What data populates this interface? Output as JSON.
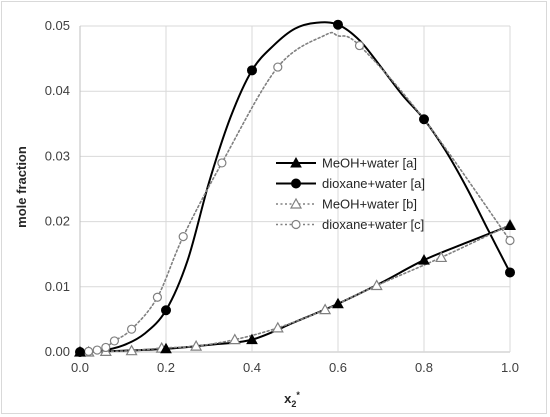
{
  "chart_data": {
    "type": "line",
    "title": "",
    "xlabel": "x",
    "xlabel_sub": "2",
    "xlabel_sup": "*",
    "ylabel": "mole fraction",
    "xlim": [
      0,
      1
    ],
    "ylim": [
      0,
      0.05
    ],
    "xticks": [
      "0.0",
      "0.2",
      "0.4",
      "0.6",
      "0.8",
      "1.0"
    ],
    "yticks": [
      "0.00",
      "0.01",
      "0.02",
      "0.03",
      "0.04",
      "0.05"
    ],
    "grid": true,
    "legend_position": "center-right",
    "series": [
      {
        "name": "MeOH+water [a]",
        "line": "solid",
        "color": "#000000",
        "marker": "filled-triangle",
        "curve": [
          [
            0,
            0
          ],
          [
            0.1,
            0.0002
          ],
          [
            0.2,
            0.0005
          ],
          [
            0.3,
            0.0011
          ],
          [
            0.4,
            0.0019
          ],
          [
            0.5,
            0.0046
          ],
          [
            0.6,
            0.0074
          ],
          [
            0.7,
            0.0106
          ],
          [
            0.8,
            0.0141
          ],
          [
            0.9,
            0.0168
          ],
          [
            1.0,
            0.0194
          ]
        ],
        "markers": [
          [
            0,
            0
          ],
          [
            0.2,
            0.0005
          ],
          [
            0.4,
            0.0019
          ],
          [
            0.6,
            0.0074
          ],
          [
            0.8,
            0.0141
          ],
          [
            1.0,
            0.0194
          ]
        ]
      },
      {
        "name": "dioxane+water [a]",
        "line": "solid",
        "color": "#000000",
        "marker": "filled-circle",
        "curve": [
          [
            0,
            0
          ],
          [
            0.05,
            0.0002
          ],
          [
            0.1,
            0.001
          ],
          [
            0.15,
            0.0028
          ],
          [
            0.2,
            0.0064
          ],
          [
            0.25,
            0.014
          ],
          [
            0.3,
            0.026
          ],
          [
            0.35,
            0.036
          ],
          [
            0.4,
            0.0432
          ],
          [
            0.45,
            0.047
          ],
          [
            0.5,
            0.0496
          ],
          [
            0.55,
            0.0505
          ],
          [
            0.6,
            0.0502
          ],
          [
            0.65,
            0.0478
          ],
          [
            0.7,
            0.0437
          ],
          [
            0.75,
            0.0394
          ],
          [
            0.8,
            0.0357
          ],
          [
            0.85,
            0.0309
          ],
          [
            0.9,
            0.0251
          ],
          [
            0.95,
            0.0186
          ],
          [
            1.0,
            0.0122
          ]
        ],
        "markers": [
          [
            0,
            0
          ],
          [
            0.2,
            0.0064
          ],
          [
            0.4,
            0.0432
          ],
          [
            0.6,
            0.0502
          ],
          [
            0.8,
            0.0357
          ],
          [
            1.0,
            0.0122
          ]
        ]
      },
      {
        "name": "MeOH+water [b]",
        "line": "dotted",
        "color": "#808080",
        "marker": "open-triangle",
        "curve": [
          [
            0,
            0
          ],
          [
            0.02,
            0
          ],
          [
            0.06,
            0.0001
          ],
          [
            0.12,
            0.0002
          ],
          [
            0.19,
            0.0006
          ],
          [
            0.27,
            0.0009
          ],
          [
            0.36,
            0.0019
          ],
          [
            0.46,
            0.0037
          ],
          [
            0.57,
            0.0065
          ],
          [
            0.69,
            0.0102
          ],
          [
            0.84,
            0.0145
          ],
          [
            1.0,
            0.0195
          ]
        ],
        "markers": [
          [
            0,
            0
          ],
          [
            0.02,
            0
          ],
          [
            0.06,
            0.0001
          ],
          [
            0.12,
            0.0002
          ],
          [
            0.19,
            0.0006
          ],
          [
            0.27,
            0.0009
          ],
          [
            0.36,
            0.0019
          ],
          [
            0.46,
            0.0037
          ],
          [
            0.57,
            0.0065
          ],
          [
            0.69,
            0.0102
          ],
          [
            0.84,
            0.0145
          ],
          [
            1.0,
            0.0195
          ]
        ]
      },
      {
        "name": "dioxane+water [c]",
        "line": "dotted",
        "color": "#808080",
        "marker": "open-circle",
        "curve": [
          [
            0,
            0
          ],
          [
            0.02,
            0.0001
          ],
          [
            0.04,
            0.0003
          ],
          [
            0.06,
            0.0007
          ],
          [
            0.08,
            0.0017
          ],
          [
            0.12,
            0.0035
          ],
          [
            0.18,
            0.0084
          ],
          [
            0.24,
            0.0177
          ],
          [
            0.33,
            0.029
          ],
          [
            0.46,
            0.0437
          ],
          [
            0.57,
            0.0486
          ],
          [
            0.6,
            0.0485
          ],
          [
            0.65,
            0.047
          ],
          [
            0.8,
            0.0357
          ],
          [
            1.0,
            0.0171
          ]
        ],
        "markers": [
          [
            0,
            0
          ],
          [
            0.02,
            0.0001
          ],
          [
            0.04,
            0.0003
          ],
          [
            0.06,
            0.0007
          ],
          [
            0.08,
            0.0017
          ],
          [
            0.12,
            0.0035
          ],
          [
            0.18,
            0.0084
          ],
          [
            0.24,
            0.0177
          ],
          [
            0.33,
            0.029
          ],
          [
            0.46,
            0.0437
          ],
          [
            0.65,
            0.047
          ],
          [
            0.8,
            0.0357
          ],
          [
            1.0,
            0.0171
          ]
        ]
      }
    ]
  },
  "colors": {
    "grid": "#d9d9d9",
    "axis": "#bfbfbf",
    "frame": "#d9d9d9"
  }
}
